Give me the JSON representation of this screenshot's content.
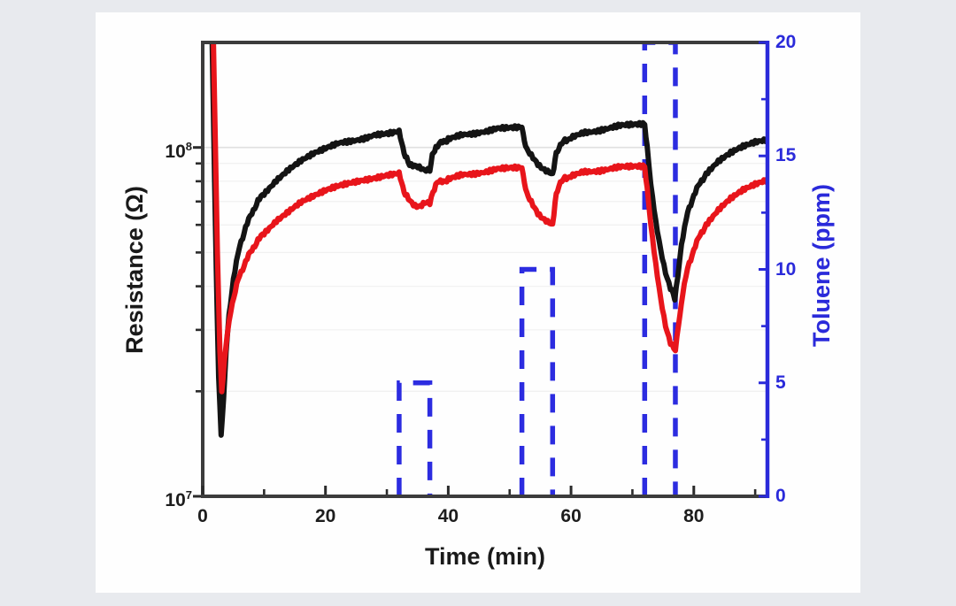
{
  "figure": {
    "background_color": "#e8eaee",
    "panel_color": "#fefefe",
    "frame_color": "#3c3c3c",
    "grid_major_color": "#e0e0e0",
    "grid_minor_color": "#f1f1f1"
  },
  "chart_data": {
    "type": "line",
    "title": "",
    "xlabel": "Time (min)",
    "ylabel_left": "Resistance (Ω)",
    "ylabel_right": "Toluene (ppm)",
    "x_axis": {
      "min": 0,
      "max": 92,
      "major_ticks": [
        {
          "value": 0,
          "label": "0"
        },
        {
          "value": 20,
          "label": "20"
        },
        {
          "value": 40,
          "label": "40"
        },
        {
          "value": 60,
          "label": "60"
        },
        {
          "value": 80,
          "label": "80"
        }
      ],
      "minor_ticks": [
        10,
        30,
        50,
        70,
        90
      ]
    },
    "y_left_axis": {
      "scale": "log",
      "min": 10000000.0,
      "max": 200000000.0,
      "major_ticks": [
        {
          "value": 10000000.0,
          "label_base": "10",
          "label_exp": "7"
        },
        {
          "value": 100000000.0,
          "label_base": "10",
          "label_exp": "8"
        }
      ],
      "minor_ticks": [
        20000000.0,
        30000000.0,
        40000000.0,
        50000000.0,
        60000000.0,
        70000000.0,
        80000000.0,
        90000000.0
      ],
      "grid": true
    },
    "y_right_axis": {
      "min": 0,
      "max": 20,
      "major_ticks": [
        {
          "value": 0,
          "label": "0"
        },
        {
          "value": 5,
          "label": "5"
        },
        {
          "value": 10,
          "label": "10"
        },
        {
          "value": 15,
          "label": "15"
        },
        {
          "value": 20,
          "label": "20"
        }
      ],
      "minor_ticks": [
        2.5,
        7.5,
        12.5,
        17.5
      ],
      "color": "#2a2ada"
    },
    "toluene_pulses": [
      {
        "start_min": 32,
        "end_min": 37,
        "ppm": 5
      },
      {
        "start_min": 52,
        "end_min": 57,
        "ppm": 10
      },
      {
        "start_min": 72,
        "end_min": 77,
        "ppm": 20
      }
    ],
    "series": [
      {
        "name": "resistance-sensor-black",
        "axis": "left",
        "color": "#141414",
        "style": "solid",
        "points": [
          [
            1.5,
            220000000.0
          ],
          [
            2.2,
            45000000.0
          ],
          [
            2.6,
            22000000.0
          ],
          [
            3.0,
            15000000.0
          ],
          [
            3.4,
            19000000.0
          ],
          [
            3.8,
            26000000.0
          ],
          [
            4.3,
            33000000.0
          ],
          [
            5,
            42000000.0
          ],
          [
            6,
            52000000.0
          ],
          [
            7,
            59000000.0
          ],
          [
            8,
            65000000.0
          ],
          [
            9,
            70000000.0
          ],
          [
            10,
            74000000.0
          ],
          [
            12,
            81000000.0
          ],
          [
            14,
            87000000.0
          ],
          [
            16,
            92000000.0
          ],
          [
            18,
            96000000.0
          ],
          [
            20,
            99000000.0
          ],
          [
            22,
            102000000.0
          ],
          [
            25,
            105500000.0
          ],
          [
            28,
            108500000.0
          ],
          [
            30,
            110000000.0
          ],
          [
            32,
            112000000.0
          ],
          [
            32.4,
            103000000.0
          ],
          [
            33,
            94000000.0
          ],
          [
            33.7,
            90000000.0
          ],
          [
            34.5,
            88500000.0
          ],
          [
            35.3,
            87000000.0
          ],
          [
            36.1,
            86000000.0
          ],
          [
            37,
            86000000.0
          ],
          [
            37.4,
            95000000.0
          ],
          [
            38,
            100000000.0
          ],
          [
            38.8,
            103000000.0
          ],
          [
            40,
            105500000.0
          ],
          [
            42,
            108000000.0
          ],
          [
            45,
            111000000.0
          ],
          [
            48,
            113000000.0
          ],
          [
            50,
            114000000.0
          ],
          [
            52,
            115000000.0
          ],
          [
            52.4,
            104000000.0
          ],
          [
            53,
            97000000.0
          ],
          [
            53.8,
            93000000.0
          ],
          [
            54.6,
            90000000.0
          ],
          [
            55.4,
            87500000.0
          ],
          [
            56.2,
            85000000.0
          ],
          [
            57,
            83000000.0
          ],
          [
            57.4,
            93000000.0
          ],
          [
            58,
            100000000.0
          ],
          [
            59,
            104500000.0
          ],
          [
            60,
            107000000.0
          ],
          [
            62,
            110000000.0
          ],
          [
            65,
            113000000.0
          ],
          [
            68,
            115000000.0
          ],
          [
            70,
            116000000.0
          ],
          [
            72,
            117000000.0
          ],
          [
            72.4,
            100000000.0
          ],
          [
            73,
            78000000.0
          ],
          [
            73.8,
            61000000.0
          ],
          [
            74.6,
            51000000.0
          ],
          [
            75.4,
            44000000.0
          ],
          [
            76.2,
            39500000.0
          ],
          [
            76.9,
            37000000.0
          ],
          [
            77.4,
            43000000.0
          ],
          [
            78,
            53000000.0
          ],
          [
            79,
            65000000.0
          ],
          [
            80,
            73000000.0
          ],
          [
            81,
            79000000.0
          ],
          [
            82,
            84000000.0
          ],
          [
            84,
            91000000.0
          ],
          [
            86,
            96000000.0
          ],
          [
            88,
            100000000.0
          ],
          [
            90,
            103000000.0
          ],
          [
            92,
            105000000.0
          ]
        ]
      },
      {
        "name": "resistance-sensor-red",
        "axis": "left",
        "color": "#e8151b",
        "style": "solid",
        "points": [
          [
            1.7,
            220000000.0
          ],
          [
            2.4,
            50000000.0
          ],
          [
            2.8,
            26000000.0
          ],
          [
            3.1,
            20000000.0
          ],
          [
            3.5,
            24000000.0
          ],
          [
            4,
            29000000.0
          ],
          [
            4.6,
            34000000.0
          ],
          [
            5.3,
            39000000.0
          ],
          [
            6,
            43000000.0
          ],
          [
            7,
            47000000.0
          ],
          [
            8,
            51000000.0
          ],
          [
            9,
            54000000.0
          ],
          [
            10,
            57000000.0
          ],
          [
            12,
            62000000.0
          ],
          [
            14,
            66000000.0
          ],
          [
            16,
            70000000.0
          ],
          [
            18,
            72500000.0
          ],
          [
            20,
            75000000.0
          ],
          [
            22,
            77000000.0
          ],
          [
            24,
            78500000.0
          ],
          [
            26,
            80000000.0
          ],
          [
            28,
            81500000.0
          ],
          [
            30,
            83500000.0
          ],
          [
            32,
            85000000.0
          ],
          [
            32.4,
            79000000.0
          ],
          [
            33,
            73000000.0
          ],
          [
            33.8,
            70000000.0
          ],
          [
            34.6,
            68500000.0
          ],
          [
            35.4,
            68000000.0
          ],
          [
            36.2,
            69000000.0
          ],
          [
            37,
            69000000.0
          ],
          [
            37.5,
            75000000.0
          ],
          [
            38.2,
            79000000.0
          ],
          [
            39,
            80000000.0
          ],
          [
            40,
            81000000.0
          ],
          [
            42,
            83000000.0
          ],
          [
            45,
            85000000.0
          ],
          [
            48,
            86500000.0
          ],
          [
            50,
            87500000.0
          ],
          [
            52,
            88000000.0
          ],
          [
            52.4,
            79000000.0
          ],
          [
            53,
            72000000.0
          ],
          [
            53.8,
            68000000.0
          ],
          [
            54.6,
            65000000.0
          ],
          [
            55.4,
            63000000.0
          ],
          [
            56.2,
            61000000.0
          ],
          [
            57,
            59500000.0
          ],
          [
            57.4,
            70000000.0
          ],
          [
            58,
            78000000.0
          ],
          [
            59,
            81500000.0
          ],
          [
            60,
            83000000.0
          ],
          [
            62,
            85000000.0
          ],
          [
            65,
            86500000.0
          ],
          [
            68,
            87500000.0
          ],
          [
            70,
            88000000.0
          ],
          [
            72,
            88500000.0
          ],
          [
            72.4,
            76000000.0
          ],
          [
            73,
            60000000.0
          ],
          [
            73.8,
            46000000.0
          ],
          [
            74.6,
            37000000.0
          ],
          [
            75.4,
            31000000.0
          ],
          [
            76.2,
            27500000.0
          ],
          [
            77,
            26000000.0
          ],
          [
            77.5,
            31000000.0
          ],
          [
            78.2,
            38000000.0
          ],
          [
            79,
            45000000.0
          ],
          [
            80,
            51000000.0
          ],
          [
            81,
            56000000.0
          ],
          [
            82,
            60000000.0
          ],
          [
            84,
            66000000.0
          ],
          [
            86,
            71000000.0
          ],
          [
            88,
            75000000.0
          ],
          [
            90,
            78000000.0
          ],
          [
            92,
            80500000.0
          ]
        ]
      },
      {
        "name": "toluene-concentration-profile",
        "axis": "right",
        "color": "#2c2ce0",
        "style": "dashed"
      }
    ]
  }
}
